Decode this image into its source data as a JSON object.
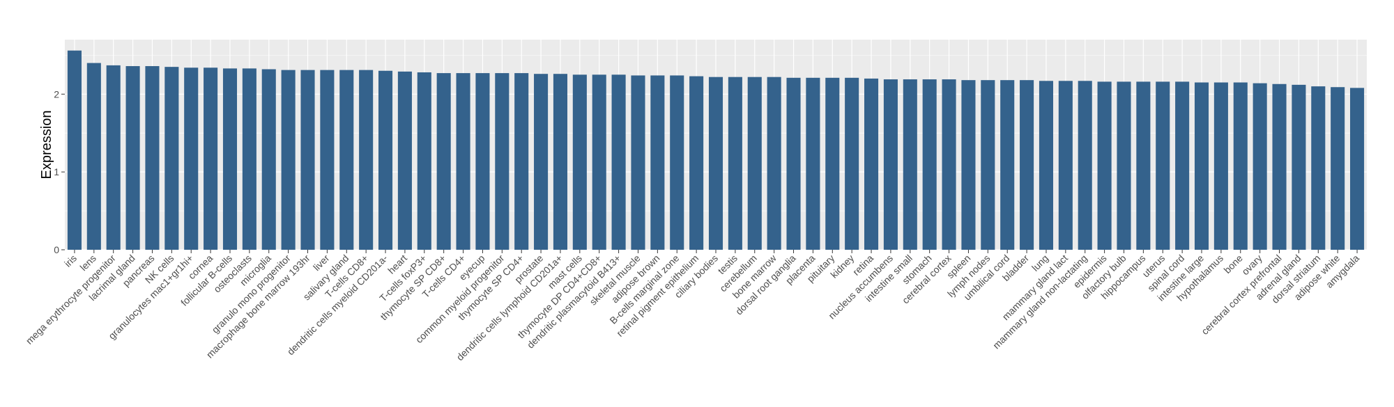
{
  "chart_data": {
    "type": "bar",
    "title": "",
    "xlabel": "",
    "ylabel": "Expression",
    "ylim": [
      0,
      2.7
    ],
    "yticks": [
      0,
      1,
      2
    ],
    "grid": true,
    "legend": "none",
    "colors": {
      "bar": "#34628c",
      "panel": "#ebebeb",
      "grid": "#ffffff",
      "text": "#4d4d4d",
      "axis_title": "#000000"
    },
    "categories": [
      "iris",
      "lens",
      "mega erythrocyte progenitor",
      "lacrimal gland",
      "pancreas",
      "NK cells",
      "granulocytes mac1+gr1hi+",
      "cornea",
      "follicular B-cells",
      "osteoclasts",
      "microglia",
      "granulo mono progenitor",
      "macrophage bone marrow 193hr",
      "liver",
      "salivary gland",
      "T-cells CD8+",
      "dendritic cells myeloid CD201a-",
      "heart",
      "T-cells foxP3+",
      "thymocyte SP CD8+",
      "T-cells CD4+",
      "eyecup",
      "common myeloid progenitor",
      "thymocyte SP CD4+",
      "prostate",
      "dendritic cells lymphoid CD201a+",
      "mast cells",
      "thymocyte DP CD4+CD8+",
      "dendritic plasmacytoid B413+",
      "skeletal muscle",
      "adipose brown",
      "B-cells marginal zone",
      "retinal pigment epithelium",
      "ciliary bodies",
      "testis",
      "cerebellum",
      "bone marrow",
      "dorsal root ganglia",
      "placenta",
      "pituitary",
      "kidney",
      "retina",
      "nucleus accumbens",
      "intestine small",
      "stomach",
      "cerebral cortex",
      "spleen",
      "lymph nodes",
      "umbilical cord",
      "bladder",
      "lung",
      "mammary gland  lact",
      "mammary gland non-lactating",
      "epidermis",
      "olfactory bulb",
      "hippocampus",
      "uterus",
      "spinal cord",
      "intestine large",
      "hypothalamus",
      "bone",
      "ovary",
      "cerebral cortex prefrontal",
      "adrenal gland",
      "dorsal striatum",
      "adipose white",
      "amygdala"
    ],
    "values": [
      2.56,
      2.4,
      2.37,
      2.36,
      2.36,
      2.35,
      2.34,
      2.34,
      2.33,
      2.33,
      2.32,
      2.31,
      2.31,
      2.31,
      2.31,
      2.31,
      2.3,
      2.29,
      2.28,
      2.27,
      2.27,
      2.27,
      2.27,
      2.27,
      2.26,
      2.26,
      2.25,
      2.25,
      2.25,
      2.24,
      2.24,
      2.24,
      2.23,
      2.22,
      2.22,
      2.22,
      2.22,
      2.21,
      2.21,
      2.21,
      2.21,
      2.2,
      2.19,
      2.19,
      2.19,
      2.19,
      2.18,
      2.18,
      2.18,
      2.18,
      2.17,
      2.17,
      2.17,
      2.16,
      2.16,
      2.16,
      2.16,
      2.16,
      2.15,
      2.15,
      2.15,
      2.14,
      2.13,
      2.12,
      2.1,
      2.09,
      2.08
    ]
  }
}
